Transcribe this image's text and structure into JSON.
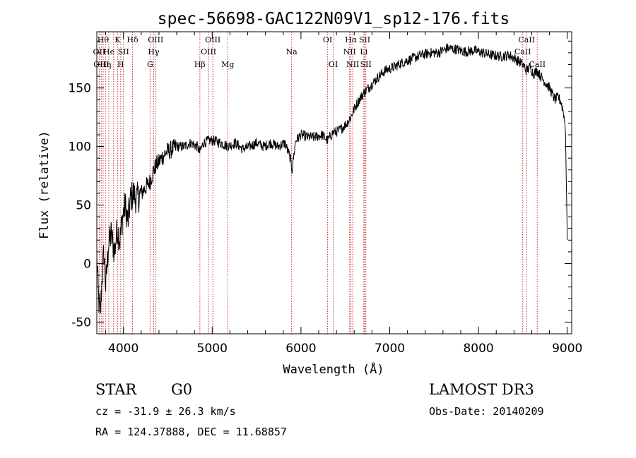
{
  "chart_data": {
    "type": "line",
    "title": "spec-56698-GAC122N09V1_sp12-176.fits",
    "xlabel": "Wavelength (Å)",
    "ylabel": "Flux (relative)",
    "xlim": [
      3700,
      9050
    ],
    "ylim": [
      -60,
      198
    ],
    "xticks": [
      4000,
      5000,
      6000,
      7000,
      8000,
      9000
    ],
    "yticks": [
      -50,
      0,
      50,
      100,
      150
    ],
    "series": [
      {
        "name": "flux",
        "x": [
          3700,
          3720,
          3740,
          3760,
          3780,
          3800,
          3830,
          3860,
          3900,
          3930,
          3960,
          3990,
          4020,
          4050,
          4080,
          4110,
          4150,
          4200,
          4250,
          4300,
          4340,
          4380,
          4430,
          4480,
          4530,
          4600,
          4680,
          4760,
          4830,
          4860,
          4900,
          4960,
          5020,
          5100,
          5180,
          5260,
          5340,
          5420,
          5500,
          5580,
          5660,
          5740,
          5820,
          5880,
          5900,
          5940,
          6000,
          6080,
          6160,
          6240,
          6300,
          6360,
          6420,
          6480,
          6520,
          6560,
          6600,
          6640,
          6700,
          6760,
          6820,
          6880,
          6950,
          7050,
          7150,
          7250,
          7350,
          7450,
          7550,
          7650,
          7750,
          7850,
          7950,
          8050,
          8150,
          8250,
          8350,
          8450,
          8500,
          8540,
          8580,
          8620,
          8660,
          8700,
          8750,
          8800,
          8830,
          8860,
          8900,
          8930,
          8960,
          8980,
          9000
        ],
        "values": [
          5,
          -30,
          -45,
          -10,
          10,
          -20,
          15,
          25,
          10,
          30,
          20,
          40,
          50,
          35,
          55,
          60,
          55,
          60,
          65,
          70,
          80,
          85,
          90,
          95,
          97,
          100,
          100,
          103,
          100,
          95,
          103,
          105,
          105,
          103,
          100,
          103,
          98,
          100,
          103,
          100,
          103,
          100,
          103,
          90,
          80,
          105,
          110,
          108,
          108,
          110,
          105,
          112,
          113,
          117,
          120,
          125,
          132,
          138,
          145,
          150,
          155,
          160,
          165,
          168,
          172,
          175,
          178,
          180,
          180,
          184,
          183,
          181,
          182,
          180,
          178,
          177,
          178,
          173,
          170,
          165,
          168,
          162,
          165,
          160,
          155,
          150,
          145,
          140,
          142,
          138,
          128,
          115,
          20
        ]
      }
    ],
    "lines": [
      {
        "x": 3727,
        "label": "OII",
        "row": 2
      },
      {
        "x": 3750,
        "label": "OIII",
        "row": 3
      },
      {
        "x": 3771,
        "label": "Hθ",
        "row": 1
      },
      {
        "x": 3798,
        "label": "Hη",
        "row": 3
      },
      {
        "x": 3835,
        "label": "He",
        "row": 2
      },
      {
        "x": 3889,
        "label": "",
        "row": 0
      },
      {
        "x": 3934,
        "label": "K",
        "row": 1
      },
      {
        "x": 3969,
        "label": "H",
        "row": 3
      },
      {
        "x": 4000,
        "label": "SII",
        "row": 2
      },
      {
        "x": 4102,
        "label": "Hδ",
        "row": 1
      },
      {
        "x": 4300,
        "label": "G",
        "row": 3
      },
      {
        "x": 4340,
        "label": "Hγ",
        "row": 2
      },
      {
        "x": 4363,
        "label": "OIII",
        "row": 1
      },
      {
        "x": 4861,
        "label": "Hβ",
        "row": 3
      },
      {
        "x": 4959,
        "label": "OIII",
        "row": 2
      },
      {
        "x": 5007,
        "label": "OIII",
        "row": 1
      },
      {
        "x": 5175,
        "label": "Mg",
        "row": 3
      },
      {
        "x": 5894,
        "label": "Na",
        "row": 2
      },
      {
        "x": 6300,
        "label": "OI",
        "row": 1
      },
      {
        "x": 6364,
        "label": "OI",
        "row": 3
      },
      {
        "x": 6548,
        "label": "NII",
        "row": 2
      },
      {
        "x": 6563,
        "label": "Hα",
        "row": 1
      },
      {
        "x": 6583,
        "label": "NII",
        "row": 3
      },
      {
        "x": 6708,
        "label": "Li",
        "row": 2
      },
      {
        "x": 6717,
        "label": "SII",
        "row": 1
      },
      {
        "x": 6731,
        "label": "SII",
        "row": 3
      },
      {
        "x": 8498,
        "label": "CaII",
        "row": 2
      },
      {
        "x": 8542,
        "label": "CaII",
        "row": 1
      },
      {
        "x": 8662,
        "label": "CaII",
        "row": 3
      }
    ],
    "line_color": "#cc3333"
  },
  "info": {
    "class": "STAR",
    "subclass": "G0",
    "survey": "LAMOST DR3",
    "cz": "cz = -31.9 ± 26.3 km/s",
    "obs_date": "Obs-Date: 20140209",
    "coords": "RA = 124.37888, DEC =  11.68857"
  }
}
